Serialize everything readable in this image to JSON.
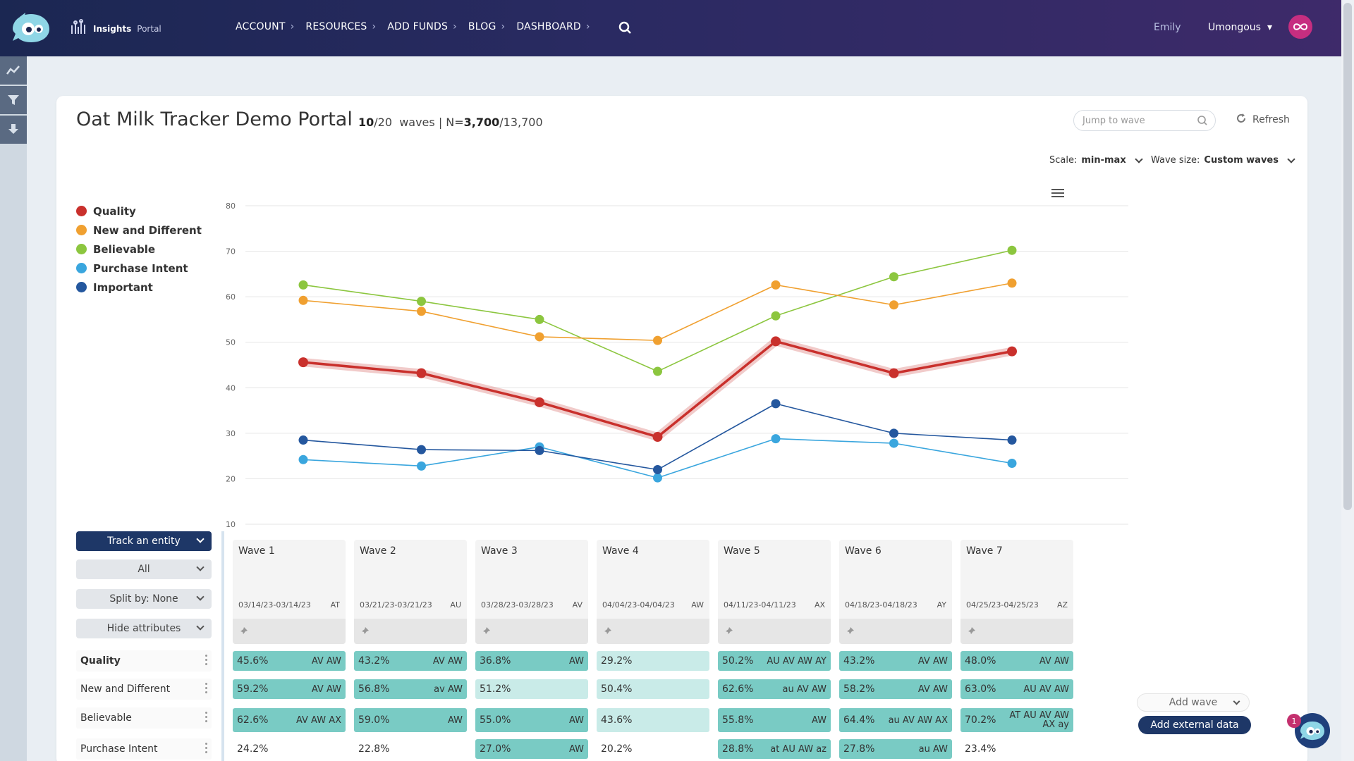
{
  "header": {
    "brand_bold": "Insights",
    "brand_light": "Portal",
    "nav": [
      "ACCOUNT",
      "RESOURCES",
      "ADD FUNDS",
      "BLOG",
      "DASHBOARD"
    ],
    "user": "Emily",
    "org": "Umongous"
  },
  "card": {
    "title": "Oat Milk Tracker Demo Portal",
    "waves_current": "10",
    "waves_total": "/20",
    "waves_word": "waves | N=",
    "n_current": "3,700",
    "n_total": "/13,700",
    "jump_placeholder": "Jump to wave",
    "refresh": "Refresh",
    "scale_label": "Scale:",
    "scale_value": "min-max",
    "wave_size_label": "Wave size:",
    "wave_size_value": "Custom waves"
  },
  "legend": [
    {
      "label": "Quality",
      "color": "#c9302c"
    },
    {
      "label": "New and Different",
      "color": "#f0a030"
    },
    {
      "label": "Believable",
      "color": "#8cc63f"
    },
    {
      "label": "Purchase Intent",
      "color": "#3aa6de"
    },
    {
      "label": "Important",
      "color": "#24579e"
    }
  ],
  "chart_data": {
    "type": "line",
    "categories": [
      "Wave 1",
      "Wave 2",
      "Wave 3",
      "Wave 4",
      "Wave 5",
      "Wave 6",
      "Wave 7"
    ],
    "ylim": [
      10,
      80
    ],
    "yticks": [
      10,
      20,
      30,
      40,
      50,
      60,
      70,
      80
    ],
    "grid": true,
    "series": [
      {
        "name": "Believable",
        "color": "#8cc63f",
        "values": [
          62.6,
          59.0,
          55.0,
          43.6,
          55.8,
          64.4,
          70.2
        ]
      },
      {
        "name": "New and Different",
        "color": "#f0a030",
        "values": [
          59.2,
          56.8,
          51.2,
          50.4,
          62.6,
          58.2,
          63.0
        ]
      },
      {
        "name": "Purchase Intent",
        "color": "#3aa6de",
        "values": [
          24.2,
          22.8,
          27.0,
          20.2,
          28.8,
          27.8,
          23.4
        ]
      },
      {
        "name": "Important",
        "color": "#24579e",
        "values": [
          28.5,
          26.4,
          26.2,
          22.0,
          36.5,
          30.0,
          28.5
        ]
      },
      {
        "name": "Quality",
        "color": "#c9302c",
        "values": [
          45.6,
          43.2,
          36.8,
          29.2,
          50.2,
          43.2,
          48.0
        ],
        "emphasis": true
      }
    ]
  },
  "controls": {
    "track": "Track an entity",
    "all": "All",
    "split": "Split by: None",
    "hide": "Hide attributes",
    "add_wave": "Add wave",
    "add_external": "Add external data"
  },
  "waves": [
    {
      "name": "Wave 1",
      "date": "03/14/23-03/14/23",
      "code": "AT"
    },
    {
      "name": "Wave 2",
      "date": "03/21/23-03/21/23",
      "code": "AU"
    },
    {
      "name": "Wave 3",
      "date": "03/28/23-03/28/23",
      "code": "AV"
    },
    {
      "name": "Wave 4",
      "date": "04/04/23-04/04/23",
      "code": "AW"
    },
    {
      "name": "Wave 5",
      "date": "04/11/23-04/11/23",
      "code": "AX"
    },
    {
      "name": "Wave 6",
      "date": "04/18/23-04/18/23",
      "code": "AY"
    },
    {
      "name": "Wave 7",
      "date": "04/25/23-04/25/23",
      "code": "AZ"
    }
  ],
  "table": [
    {
      "label": "Quality",
      "bold": true,
      "cells": [
        {
          "v": "45.6%",
          "t": "AV AW",
          "s": "dark"
        },
        {
          "v": "43.2%",
          "t": "AV AW",
          "s": "dark"
        },
        {
          "v": "36.8%",
          "t": "AW",
          "s": "dark"
        },
        {
          "v": "29.2%",
          "t": "",
          "s": "light"
        },
        {
          "v": "50.2%",
          "t": "AU AV AW AY",
          "s": "dark"
        },
        {
          "v": "43.2%",
          "t": "AV AW",
          "s": "dark"
        },
        {
          "v": "48.0%",
          "t": "AV AW",
          "s": "dark"
        }
      ]
    },
    {
      "label": "New and Different",
      "bold": false,
      "cells": [
        {
          "v": "59.2%",
          "t": "AV AW",
          "s": "dark"
        },
        {
          "v": "56.8%",
          "t": "av AW",
          "s": "dark"
        },
        {
          "v": "51.2%",
          "t": "",
          "s": "light"
        },
        {
          "v": "50.4%",
          "t": "",
          "s": "light"
        },
        {
          "v": "62.6%",
          "t": "au AV AW",
          "s": "dark"
        },
        {
          "v": "58.2%",
          "t": "AV AW",
          "s": "dark"
        },
        {
          "v": "63.0%",
          "t": "AU AV AW",
          "s": "dark"
        }
      ]
    },
    {
      "label": "Believable",
      "bold": false,
      "cells": [
        {
          "v": "62.6%",
          "t": "AV AW AX",
          "s": "dark"
        },
        {
          "v": "59.0%",
          "t": "AW",
          "s": "dark"
        },
        {
          "v": "55.0%",
          "t": "AW",
          "s": "dark"
        },
        {
          "v": "43.6%",
          "t": "",
          "s": "light"
        },
        {
          "v": "55.8%",
          "t": "AW",
          "s": "dark"
        },
        {
          "v": "64.4%",
          "t": "au AV AW AX",
          "s": "dark"
        },
        {
          "v": "70.2%",
          "t": "AT AU AV AW AX ay",
          "s": "dark"
        }
      ]
    },
    {
      "label": "Purchase Intent",
      "bold": false,
      "cells": [
        {
          "v": "24.2%",
          "t": "",
          "s": "plain"
        },
        {
          "v": "22.8%",
          "t": "",
          "s": "plain"
        },
        {
          "v": "27.0%",
          "t": "AW",
          "s": "dark"
        },
        {
          "v": "20.2%",
          "t": "",
          "s": "plain"
        },
        {
          "v": "28.8%",
          "t": "at AU AW az",
          "s": "dark"
        },
        {
          "v": "27.8%",
          "t": "au AW",
          "s": "dark"
        },
        {
          "v": "23.4%",
          "t": "",
          "s": "plain"
        }
      ]
    }
  ],
  "bot_badge": "1",
  "icons": [
    "logo-icon",
    "brand-icon",
    "search-icon",
    "user-menu-chevron-icon",
    "org-avatar-icon",
    "chart-tool-icon",
    "filter-icon",
    "download-icon",
    "refresh-icon",
    "menu-icon",
    "pin-icon",
    "chatbot-icon"
  ]
}
